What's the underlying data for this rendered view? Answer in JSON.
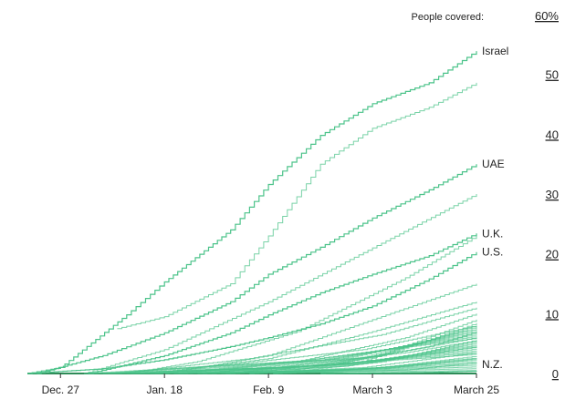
{
  "chart_data": {
    "type": "line",
    "y_title_prefix": "People covered:",
    "y_unit": "%",
    "ylim": [
      0,
      60
    ],
    "yticks": [
      0,
      10,
      20,
      30,
      40,
      50,
      60
    ],
    "yaxis_position": "right",
    "x_tick_labels": [
      "Dec. 27",
      "Jan. 18",
      "Feb. 9",
      "March 3",
      "March 25"
    ],
    "x_tick_dates": [
      "2020-12-27",
      "2021-01-18",
      "2021-02-09",
      "2021-03-03",
      "2021-03-25"
    ],
    "x_range": [
      "2020-12-20",
      "2021-03-25"
    ],
    "grid": false,
    "line_color": "#4cc38a",
    "baseline_color": "#2e8b57",
    "labeled_series": [
      {
        "name": "Israel",
        "x": [
          "2020-12-20",
          "2020-12-27",
          "2021-01-10",
          "2021-01-18",
          "2021-02-01",
          "2021-02-09",
          "2021-02-20",
          "2021-03-03",
          "2021-03-15",
          "2021-03-25"
        ],
        "y": [
          0,
          1.0,
          9.8,
          15.3,
          24.0,
          31.6,
          39.8,
          45.1,
          48.6,
          53.9
        ]
      },
      {
        "name": "UAE",
        "x": [
          "2020-12-22",
          "2021-01-05",
          "2021-01-18",
          "2021-02-01",
          "2021-02-09",
          "2021-02-20",
          "2021-03-03",
          "2021-03-15",
          "2021-03-25"
        ],
        "y": [
          0,
          3.0,
          6.8,
          12.0,
          16.6,
          21.1,
          26.0,
          30.7,
          35.0
        ]
      },
      {
        "name": "U.K.",
        "x": [
          "2021-01-02",
          "2021-01-18",
          "2021-02-01",
          "2021-02-09",
          "2021-02-20",
          "2021-03-03",
          "2021-03-15",
          "2021-03-25"
        ],
        "y": [
          0,
          3.0,
          6.8,
          9.8,
          13.5,
          16.6,
          19.7,
          23.4
        ]
      },
      {
        "name": "U.S.",
        "x": [
          "2020-12-20",
          "2021-01-05",
          "2021-01-18",
          "2021-02-01",
          "2021-02-09",
          "2021-02-20",
          "2021-03-03",
          "2021-03-15",
          "2021-03-25"
        ],
        "y": [
          0,
          0.8,
          2.3,
          4.5,
          6.0,
          8.3,
          11.3,
          15.8,
          20.3
        ]
      },
      {
        "name": "N.Z.",
        "x": [
          "2021-02-20",
          "2021-03-03",
          "2021-03-15",
          "2021-03-25"
        ],
        "y": [
          0,
          0.1,
          0.2,
          0.4
        ]
      }
    ],
    "other_series": [
      {
        "x": [
          "2021-01-08",
          "2021-01-18",
          "2021-02-01",
          "2021-02-09",
          "2021-02-20",
          "2021-03-03",
          "2021-03-15",
          "2021-03-25"
        ],
        "y": [
          7.5,
          9.5,
          15.0,
          23.0,
          35.0,
          41.0,
          44.5,
          48.6
        ]
      },
      {
        "x": [
          "2021-01-01",
          "2021-01-18",
          "2021-02-09",
          "2021-03-03",
          "2021-03-25"
        ],
        "y": [
          0,
          4.0,
          12.0,
          21.0,
          30.0
        ]
      },
      {
        "x": [
          "2021-01-10",
          "2021-01-25",
          "2021-02-15",
          "2021-03-10",
          "2021-03-25"
        ],
        "y": [
          0,
          2.0,
          7.0,
          16.0,
          23.0
        ]
      },
      {
        "x": [
          "2021-01-18",
          "2021-02-09",
          "2021-03-03",
          "2021-03-25"
        ],
        "y": [
          0,
          3.0,
          9.0,
          15.0
        ]
      },
      {
        "x": [
          "2021-01-15",
          "2021-02-09",
          "2021-03-03",
          "2021-03-25"
        ],
        "y": [
          0,
          2.5,
          7.0,
          12.0
        ]
      },
      {
        "x": [
          "2021-01-20",
          "2021-02-15",
          "2021-03-10",
          "2021-03-25"
        ],
        "y": [
          0,
          2.0,
          6.0,
          10.0
        ]
      },
      {
        "x": [
          "2021-01-05",
          "2021-02-01",
          "2021-03-01",
          "2021-03-25"
        ],
        "y": [
          0,
          1.5,
          4.0,
          8.0
        ]
      },
      {
        "x": [
          "2021-01-25",
          "2021-02-20",
          "2021-03-15",
          "2021-03-25"
        ],
        "y": [
          0,
          1.5,
          4.5,
          7.0
        ]
      },
      {
        "x": [
          "2021-01-12",
          "2021-02-10",
          "2021-03-10",
          "2021-03-25"
        ],
        "y": [
          0,
          1.0,
          3.5,
          5.5
        ]
      },
      {
        "x": [
          "2021-01-28",
          "2021-02-25",
          "2021-03-25"
        ],
        "y": [
          0,
          1.2,
          4.5
        ]
      },
      {
        "x": [
          "2021-02-01",
          "2021-03-01",
          "2021-03-25"
        ],
        "y": [
          0,
          1.0,
          3.5
        ]
      },
      {
        "x": [
          "2021-02-05",
          "2021-03-05",
          "2021-03-25"
        ],
        "y": [
          0,
          0.8,
          2.5
        ]
      },
      {
        "x": [
          "2021-02-10",
          "2021-03-10",
          "2021-03-25"
        ],
        "y": [
          0,
          0.6,
          1.8
        ]
      },
      {
        "x": [
          "2021-01-22",
          "2021-02-22",
          "2021-03-25"
        ],
        "y": [
          0,
          1.5,
          6.0
        ]
      },
      {
        "x": [
          "2021-01-30",
          "2021-03-01",
          "2021-03-25"
        ],
        "y": [
          0,
          2.0,
          9.0
        ]
      },
      {
        "x": [
          "2021-01-08",
          "2021-02-05",
          "2021-03-05",
          "2021-03-25"
        ],
        "y": [
          0,
          2.5,
          6.5,
          11.0
        ]
      }
    ],
    "tail_values": [
      0.5,
      0.8,
      1.1,
      1.4,
      1.7,
      2.0,
      2.3,
      2.6,
      2.9,
      3.2,
      3.5,
      3.8,
      4.1,
      4.4,
      4.7,
      5.0,
      5.3,
      5.6,
      5.9,
      6.2,
      6.5,
      6.8,
      7.1,
      7.4,
      7.7,
      8.0,
      8.4
    ]
  }
}
